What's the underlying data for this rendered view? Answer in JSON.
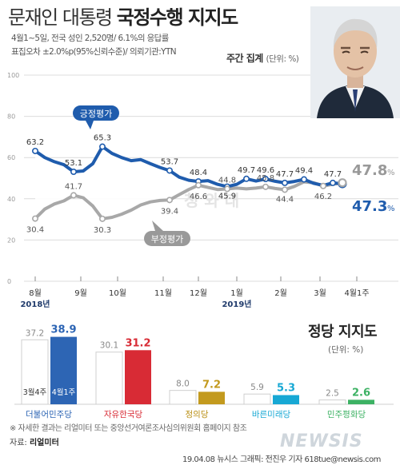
{
  "header": {
    "title_main": "문재인 대통령 ",
    "title_bold": "국정수행 지지도",
    "survey_info": [
      "4월1~5일, 전국 성인 2,520명/ 6.1%의 응답률",
      "표집오차 ±2.0%p(95%신뢰수준)/ 의뢰기관:YTN"
    ],
    "subtitle": "주간 집계",
    "unit": "(단위: %)"
  },
  "colors": {
    "positive": "#1f5cad",
    "negative": "#a8a8a8",
    "year": "#1f3a6b"
  },
  "chart_data": [
    {
      "type": "line",
      "y_axis_ticks": [
        0,
        20,
        40,
        60,
        80,
        100
      ],
      "ylim": [
        0,
        100
      ],
      "x_ticks": [
        "8월",
        "9월",
        "10월",
        "11월",
        "12월",
        "1월",
        "2월",
        "3월",
        "4월1주"
      ],
      "x_years": [
        {
          "label": "2018년",
          "under": "8월"
        },
        {
          "label": "2019년",
          "under": "1월"
        }
      ],
      "series": [
        {
          "name": "긍정평가",
          "values": [
            63.2,
            60,
            58,
            56.5,
            53.1,
            53.5,
            57,
            65.3,
            62,
            60,
            58.5,
            59,
            57,
            55.2,
            53.7,
            50.5,
            49,
            48.4,
            48.8,
            47,
            45.9,
            47,
            49.7,
            48.6,
            49.6,
            48.5,
            47.7,
            48.4,
            49.4,
            47.5,
            46.5,
            47.7,
            47.3
          ],
          "labels": [
            {
              "i": 0,
              "text": "63.2"
            },
            {
              "i": 4,
              "text": "53.1"
            },
            {
              "i": 7,
              "text": "65.3"
            },
            {
              "i": 14,
              "text": "53.7"
            },
            {
              "i": 17,
              "text": "48.4"
            },
            {
              "i": 20,
              "text": "45.9"
            },
            {
              "i": 22,
              "text": "49.7"
            },
            {
              "i": 24,
              "text": "49.6"
            },
            {
              "i": 26,
              "text": "47.7"
            },
            {
              "i": 28,
              "text": "49.4"
            },
            {
              "i": 31,
              "text": "47.7"
            }
          ],
          "final": "47.3"
        },
        {
          "name": "부정평가",
          "values": [
            30.4,
            35,
            37.5,
            39,
            41.7,
            40.5,
            36.5,
            30.3,
            31,
            32.5,
            34.5,
            37,
            38.5,
            39.2,
            39.4,
            42,
            44.5,
            46.6,
            45.5,
            44.5,
            44.8,
            45.2,
            44.8,
            45.2,
            45.8,
            45,
            44.4,
            46,
            48.2,
            47.8,
            46.2,
            47,
            47.8
          ],
          "labels": [
            {
              "i": 0,
              "text": "30.4"
            },
            {
              "i": 4,
              "text": "41.7"
            },
            {
              "i": 7,
              "text": "30.3"
            },
            {
              "i": 14,
              "text": "39.4"
            },
            {
              "i": 17,
              "text": "46.6"
            },
            {
              "i": 20,
              "text": "44.8"
            },
            {
              "i": 24,
              "text": "45.8"
            },
            {
              "i": 26,
              "text": "44.4"
            },
            {
              "i": 30,
              "text": "46.2"
            }
          ],
          "final": "47.8"
        }
      ],
      "annotations": [
        "긍정평가",
        "부정평가"
      ]
    },
    {
      "type": "bar",
      "title": "정당 지지도",
      "unit": "(단위: %)",
      "series_labels": [
        "3월4주",
        "4월1주"
      ],
      "parties": [
        {
          "name": "더불어민주당",
          "prev": 37.2,
          "curr": 38.9,
          "color": "#2d65b4",
          "name_color": "#2d65b4"
        },
        {
          "name": "자유한국당",
          "prev": 30.1,
          "curr": 31.2,
          "color": "#d82b35",
          "name_color": "#d82b35"
        },
        {
          "name": "정의당",
          "prev": 8.0,
          "curr": 7.2,
          "color": "#c39a1e",
          "name_color": "#b98e12"
        },
        {
          "name": "바른미래당",
          "prev": 5.9,
          "curr": 5.3,
          "color": "#17a8d4",
          "name_color": "#17a8d4"
        },
        {
          "name": "민주평화당",
          "prev": 2.5,
          "curr": 2.6,
          "color": "#3db264",
          "name_color": "#3db264"
        }
      ],
      "prev_value_labels": [
        "37.2",
        "30.1",
        "8.0",
        "5.9",
        "2.5"
      ],
      "curr_value_labels": [
        "38.9",
        "31.2",
        "7.2",
        "5.3",
        "2.6"
      ]
    }
  ],
  "footer": {
    "note": "※ 자세한 결과는 리얼미터 또는 중앙선거여론조사심의위원회 홈페이지 참조",
    "source_label": "자료:",
    "source": "리얼미터",
    "credit": "19.04.08  뉴시스 그래픽: 전진우 기자 618tue@newsis.com",
    "watermark": "NEWSIS"
  }
}
